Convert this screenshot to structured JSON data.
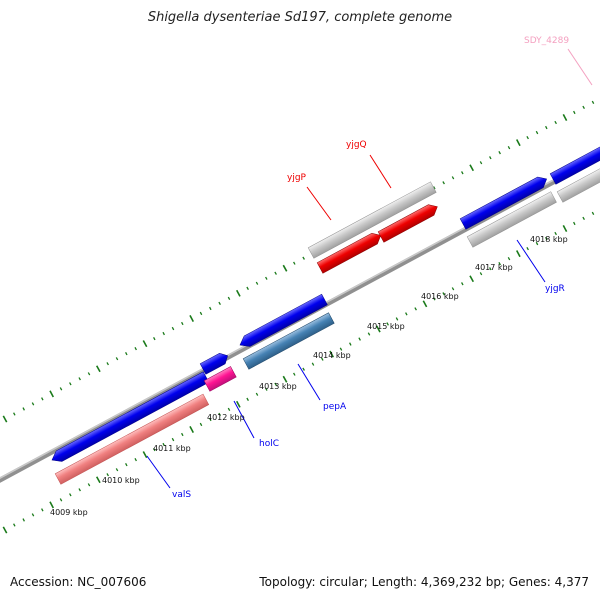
{
  "header": {
    "title": "Shigella dysenteriae Sd197, complete genome"
  },
  "footer": {
    "accession": "Accession: NC_007606",
    "summary": "Topology: circular; Length: 4,369,232 bp; Genes: 4,377"
  },
  "ticks": [
    "4009 kbp",
    "4010 kbp",
    "4011 kbp",
    "4012 kbp",
    "4013 kbp",
    "4014 kbp",
    "4015 kbp",
    "4016 kbp",
    "4017 kbp",
    "4018 kbp"
  ],
  "genes": {
    "valS": "valS",
    "holC": "holC",
    "pepA": "pepA",
    "yjgP": "yjgP",
    "yjgQ": "yjgQ",
    "yjgR": "yjgR",
    "sdy4289": "SDY_4289"
  },
  "colors": {
    "forward_gene": "#0000ee",
    "reverse_gene": "#ee0000",
    "feature_pink": "#f08080",
    "feature_magenta": "#ff1493",
    "feature_steel": "#4682b4",
    "feature_grey": "#c8c8c8",
    "backbone": "#888888",
    "tick_green": "#1a7a1a"
  }
}
